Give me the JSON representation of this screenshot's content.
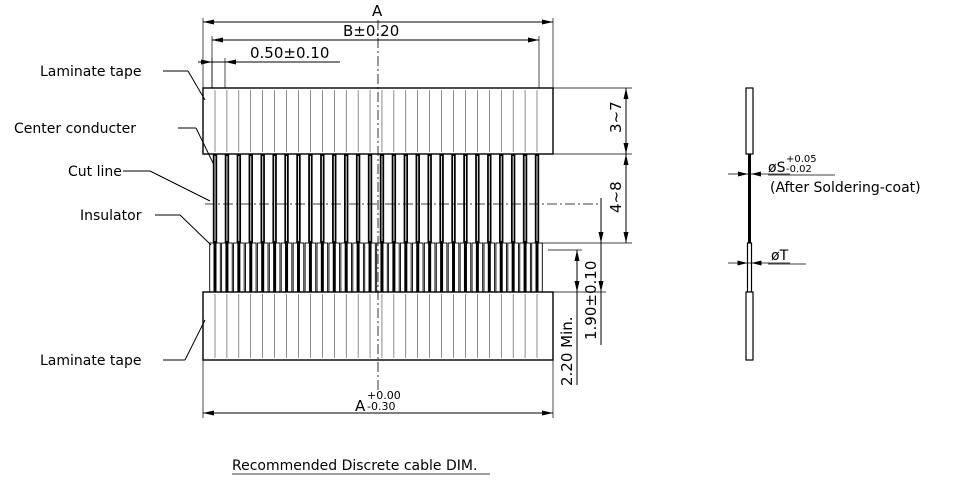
{
  "labels": {
    "laminate_tape_top": "Laminate tape",
    "center_conductor": "Center conducter",
    "cut_line": "Cut line",
    "insulator": "Insulator",
    "laminate_tape_bottom": "Laminate tape"
  },
  "dimensions": {
    "overall_a": "A",
    "b": "B±0.20",
    "pitch": "0.50±0.10",
    "tape_height": "3~7",
    "exposed_length": "4~8",
    "insulator_length": "1.90±0.10",
    "min_length": "2.20 Min.",
    "bottom_a_base": "A",
    "bottom_a_upper_tol": "+0.00",
    "bottom_a_lower_tol": "-0.30"
  },
  "side_view": {
    "diameter_s": "øS",
    "s_upper_tol": "+0.05",
    "s_lower_tol": "-0.02",
    "after_coat": "(After Soldering-coat)",
    "diameter_t": "øT"
  },
  "caption": "Recommended Discrete cable DIM.",
  "conductor_count": 28
}
